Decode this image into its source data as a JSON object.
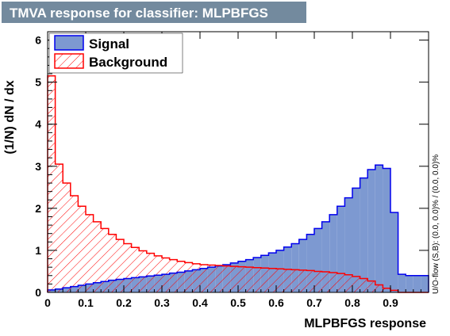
{
  "chart_data": {
    "type": "histogram",
    "title": "TMVA response for classifier: MLPBFGS",
    "xlabel": "MLPBFGS response",
    "ylabel": "(1/N) dN / dx",
    "side_note": "U/O-flow (S,B): (0.0, 0.0)% / (0.0, 0.0)%",
    "xlim": [
      0,
      1.0
    ],
    "ylim": [
      0,
      6.2
    ],
    "x_ticks": [
      0,
      0.1,
      0.2,
      0.3,
      0.4,
      0.5,
      0.6,
      0.7,
      0.8,
      0.9
    ],
    "y_ticks": [
      0,
      1,
      2,
      3,
      4,
      5,
      6
    ],
    "bin_width": 0.02,
    "legend_position": "top-left",
    "series": [
      {
        "name": "Signal",
        "fill": "#7d99d1",
        "line": "#0000ee",
        "style": "solid",
        "values": [
          0.06,
          0.08,
          0.11,
          0.14,
          0.17,
          0.2,
          0.23,
          0.26,
          0.29,
          0.31,
          0.33,
          0.35,
          0.37,
          0.39,
          0.41,
          0.43,
          0.46,
          0.48,
          0.51,
          0.54,
          0.57,
          0.6,
          0.63,
          0.66,
          0.7,
          0.74,
          0.78,
          0.83,
          0.88,
          0.94,
          1.0,
          1.08,
          1.16,
          1.26,
          1.38,
          1.52,
          1.68,
          1.85,
          2.05,
          2.25,
          2.48,
          2.72,
          2.92,
          3.03,
          2.95,
          1.9,
          0.43,
          0.4,
          0.4,
          0.4
        ]
      },
      {
        "name": "Background",
        "fill": "#ff0000",
        "line": "#ff0000",
        "style": "hatched",
        "values": [
          5.15,
          3.05,
          2.6,
          2.3,
          2.05,
          1.85,
          1.68,
          1.52,
          1.38,
          1.26,
          1.16,
          1.07,
          0.99,
          0.93,
          0.87,
          0.82,
          0.78,
          0.74,
          0.71,
          0.68,
          0.66,
          0.65,
          0.64,
          0.63,
          0.62,
          0.61,
          0.6,
          0.59,
          0.58,
          0.57,
          0.56,
          0.55,
          0.54,
          0.53,
          0.52,
          0.5,
          0.49,
          0.47,
          0.45,
          0.42,
          0.38,
          0.33,
          0.27,
          0.18,
          0.1,
          0.05,
          0.0,
          0.0,
          0.0,
          0.0
        ]
      }
    ]
  }
}
